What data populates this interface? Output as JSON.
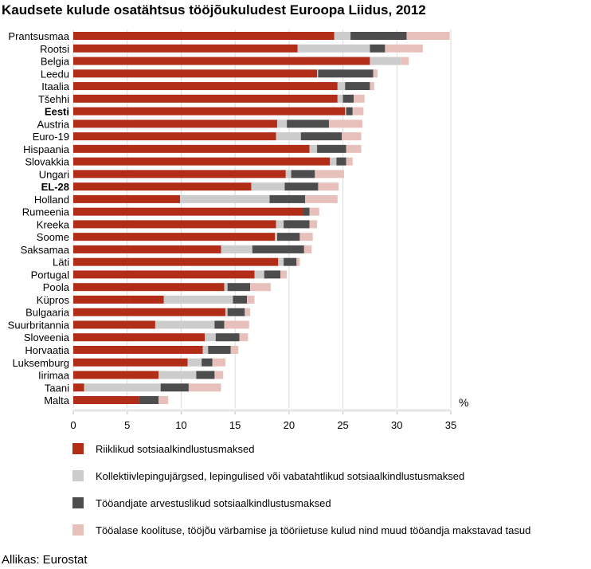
{
  "chart_data": {
    "type": "bar",
    "orientation": "horizontal",
    "stacked": true,
    "title": "Kaudsete kulude osatähtsus tööjõukuludest Euroopa Liidus, 2012",
    "xlabel": "%",
    "xlim": [
      0,
      35
    ],
    "xticks": [
      0,
      5,
      10,
      15,
      20,
      25,
      30,
      35
    ],
    "grid": true,
    "legend_position": "bottom",
    "source": "Allikas: Eurostat",
    "categories": [
      "Prantsusmaa",
      "Rootsi",
      "Belgia",
      "Leedu",
      "Itaalia",
      "Tšehhi",
      "Eesti",
      "Austria",
      "Euro-19",
      "Hispaania",
      "Slovakkia",
      "Ungari",
      "EL-28",
      "Holland",
      "Rumeenia",
      "Kreeka",
      "Soome",
      "Saksamaa",
      "Läti",
      "Portugal",
      "Poola",
      "Küpros",
      "Bulgaaria",
      "Suurbritannia",
      "Sloveenia",
      "Horvaatia",
      "Luksemburg",
      "Iirimaa",
      "Taani",
      "Malta"
    ],
    "bold_categories": [
      "Eesti",
      "EL-28"
    ],
    "series": [
      {
        "name": "Riiklikud sotsiaalkindlustusmaksed",
        "color": "#b22d18",
        "values": [
          24.2,
          20.8,
          27.5,
          22.6,
          24.5,
          24.5,
          25.2,
          18.9,
          18.8,
          21.9,
          23.8,
          19.7,
          16.5,
          9.9,
          21.3,
          18.8,
          18.7,
          13.7,
          19.0,
          16.8,
          14.0,
          8.4,
          14.1,
          7.6,
          12.2,
          12.0,
          10.6,
          7.9,
          1.0,
          6.1
        ]
      },
      {
        "name": "Kollektiivlepingujärgsed, lepingulised või vabatahtlikud sotsiaalkindlustusmaksed",
        "color": "#cccccc",
        "values": [
          1.5,
          6.7,
          2.9,
          0.1,
          0.7,
          0.5,
          0.1,
          0.9,
          2.3,
          0.7,
          0.6,
          0.5,
          3.1,
          8.3,
          0.0,
          0.7,
          0.2,
          2.9,
          0.5,
          0.9,
          0.3,
          6.4,
          0.2,
          5.5,
          1.0,
          0.5,
          1.3,
          3.5,
          7.1,
          0.0
        ]
      },
      {
        "name": "Tööandjate arvestuslikud sotsiaalkindlustusmaksed",
        "color": "#4d4d4d",
        "values": [
          5.2,
          1.4,
          0.0,
          5.1,
          2.3,
          1.0,
          0.6,
          3.9,
          3.8,
          2.7,
          0.9,
          2.2,
          3.1,
          3.3,
          0.6,
          2.4,
          2.1,
          4.8,
          1.2,
          1.5,
          2.1,
          1.3,
          1.6,
          0.9,
          2.2,
          2.1,
          1.0,
          1.7,
          2.6,
          1.8
        ]
      },
      {
        "name": "Tööalase koolituse, tööjõu värbamise ja tööriietuse kulud nind muud tööandja makstavad tasud",
        "color": "#e8c0bb",
        "values": [
          4.0,
          3.5,
          0.7,
          0.4,
          0.4,
          1.0,
          1.0,
          3.1,
          1.8,
          1.4,
          0.6,
          2.7,
          1.9,
          3.0,
          0.9,
          0.7,
          1.2,
          0.7,
          0.3,
          0.6,
          1.9,
          0.7,
          0.5,
          2.3,
          0.8,
          0.7,
          1.2,
          0.8,
          3.0,
          0.9
        ]
      }
    ]
  }
}
